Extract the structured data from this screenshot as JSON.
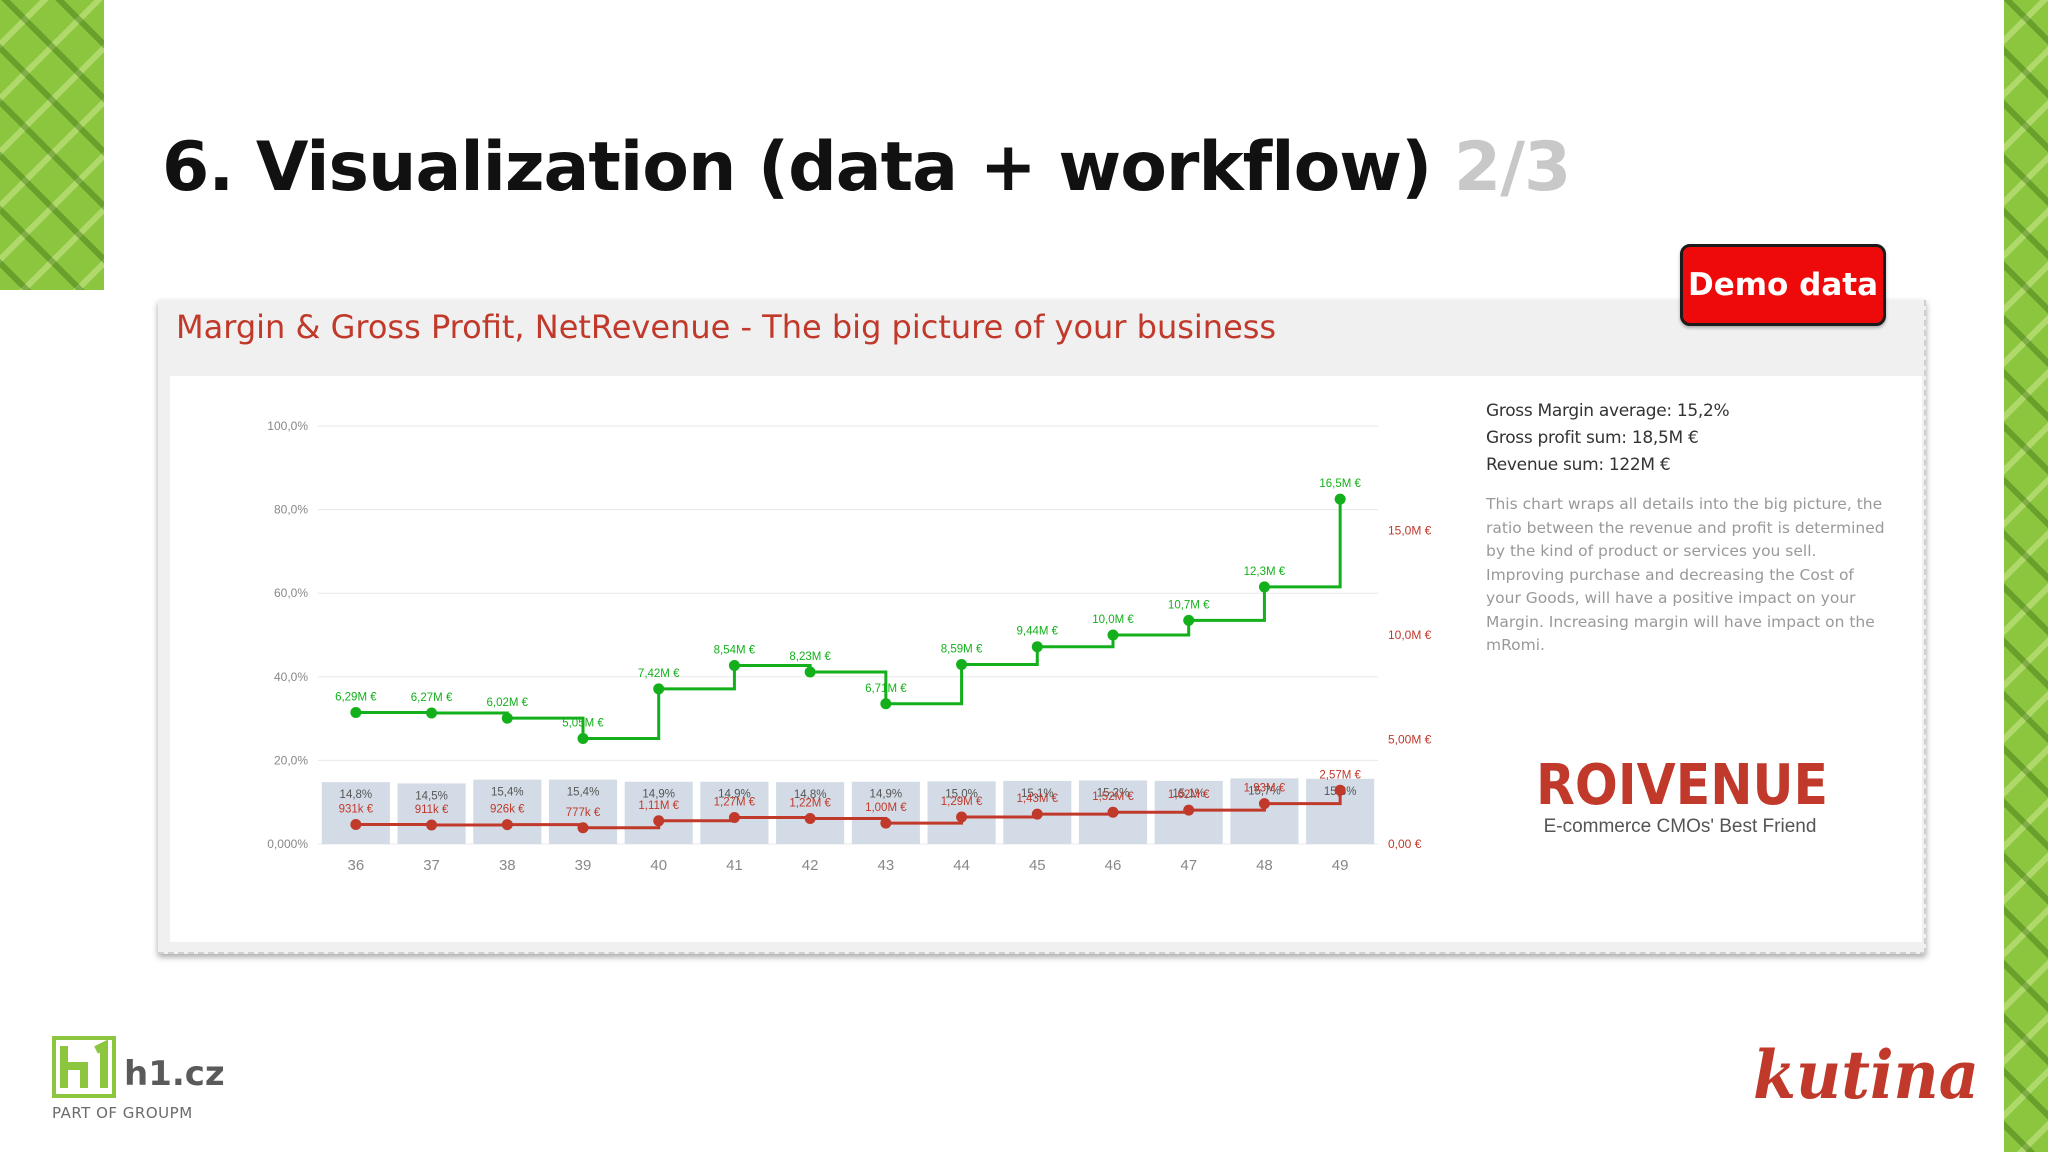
{
  "slide": {
    "title": "6. Visualization (data + workflow)",
    "title_page": "2/3",
    "badge": "Demo data"
  },
  "card": {
    "title": "Margin & Gross Profit, NetRevenue - The big picture of your business",
    "stats": [
      "Gross Margin average: 15,2%",
      "Gross profit sum: 18,5M €",
      "Revenue sum: 122M €"
    ],
    "description": "This chart wraps all details into the big picture, the ratio between the revenue and profit is determined by the kind of product or services you sell. Improving purchase and decreasing the Cost of your Goods, will have a positive impact on your Margin. Increasing margin will have impact on the mRomi."
  },
  "logos": {
    "roivenue": "ROIVENUE",
    "roivenue_tagline": "E-commerce CMOs' Best Friend",
    "h1_name": "h1.cz",
    "h1_sub": "PART OF GROUPM",
    "kutina": "kutina"
  },
  "colors": {
    "revenue": "#13b01b",
    "profit": "#c0392b",
    "margin_bar": "#d3dce6",
    "badge": "#ee0a0a",
    "accent_green": "#8cc63f"
  },
  "chart_data": {
    "type": "bar+line",
    "categories": [
      "36",
      "37",
      "38",
      "39",
      "40",
      "41",
      "42",
      "43",
      "44",
      "45",
      "46",
      "47",
      "48",
      "49"
    ],
    "y_left": {
      "ticks": [
        "100,0%",
        "80,0%",
        "60,0%",
        "40,0%",
        "20,0%",
        "0,000%"
      ],
      "range": [
        0,
        100
      ]
    },
    "y_right": {
      "ticks": [
        "15,0M €",
        "10,0M €",
        "5,00M €",
        "0,00 €"
      ],
      "range": [
        0,
        20
      ]
    },
    "series": [
      {
        "name": "Margin",
        "kind": "bar",
        "values": [
          14.8,
          14.5,
          15.4,
          15.4,
          14.9,
          14.9,
          14.8,
          14.9,
          15.0,
          15.1,
          15.2,
          15.1,
          15.7,
          15.6
        ],
        "labels": [
          "14,8%",
          "14,5%",
          "15,4%",
          "15,4%",
          "14,9%",
          "14,9%",
          "14,8%",
          "14,9%",
          "15,0%",
          "15,1%",
          "15,2%",
          "15,1%",
          "15,7%",
          "15,6%"
        ]
      },
      {
        "name": "Revenue",
        "kind": "step-line",
        "values": [
          6.29,
          6.27,
          6.02,
          5.05,
          7.42,
          8.54,
          8.23,
          6.71,
          8.59,
          9.44,
          10.0,
          10.7,
          12.3,
          16.5
        ],
        "labels": [
          "6,29M €",
          "6,27M €",
          "6,02M €",
          "5,05M €",
          "7,42M €",
          "8,54M €",
          "8,23M €",
          "6,71M €",
          "8,59M €",
          "9,44M €",
          "10,0M €",
          "10,7M €",
          "12,3M €",
          "16,5M €"
        ]
      },
      {
        "name": "Gross profit",
        "kind": "step-line",
        "values": [
          0.931,
          0.911,
          0.926,
          0.777,
          1.11,
          1.27,
          1.22,
          1.0,
          1.29,
          1.43,
          1.52,
          1.62,
          1.93,
          2.57
        ],
        "labels": [
          "931k €",
          "911k €",
          "926k €",
          "777k €",
          "1,11M €",
          "1,27M €",
          "1,22M €",
          "1,00M €",
          "1,29M €",
          "1,43M €",
          "1,52M €",
          "1,62M €",
          "1,93M €",
          "2,57M €"
        ]
      }
    ]
  }
}
